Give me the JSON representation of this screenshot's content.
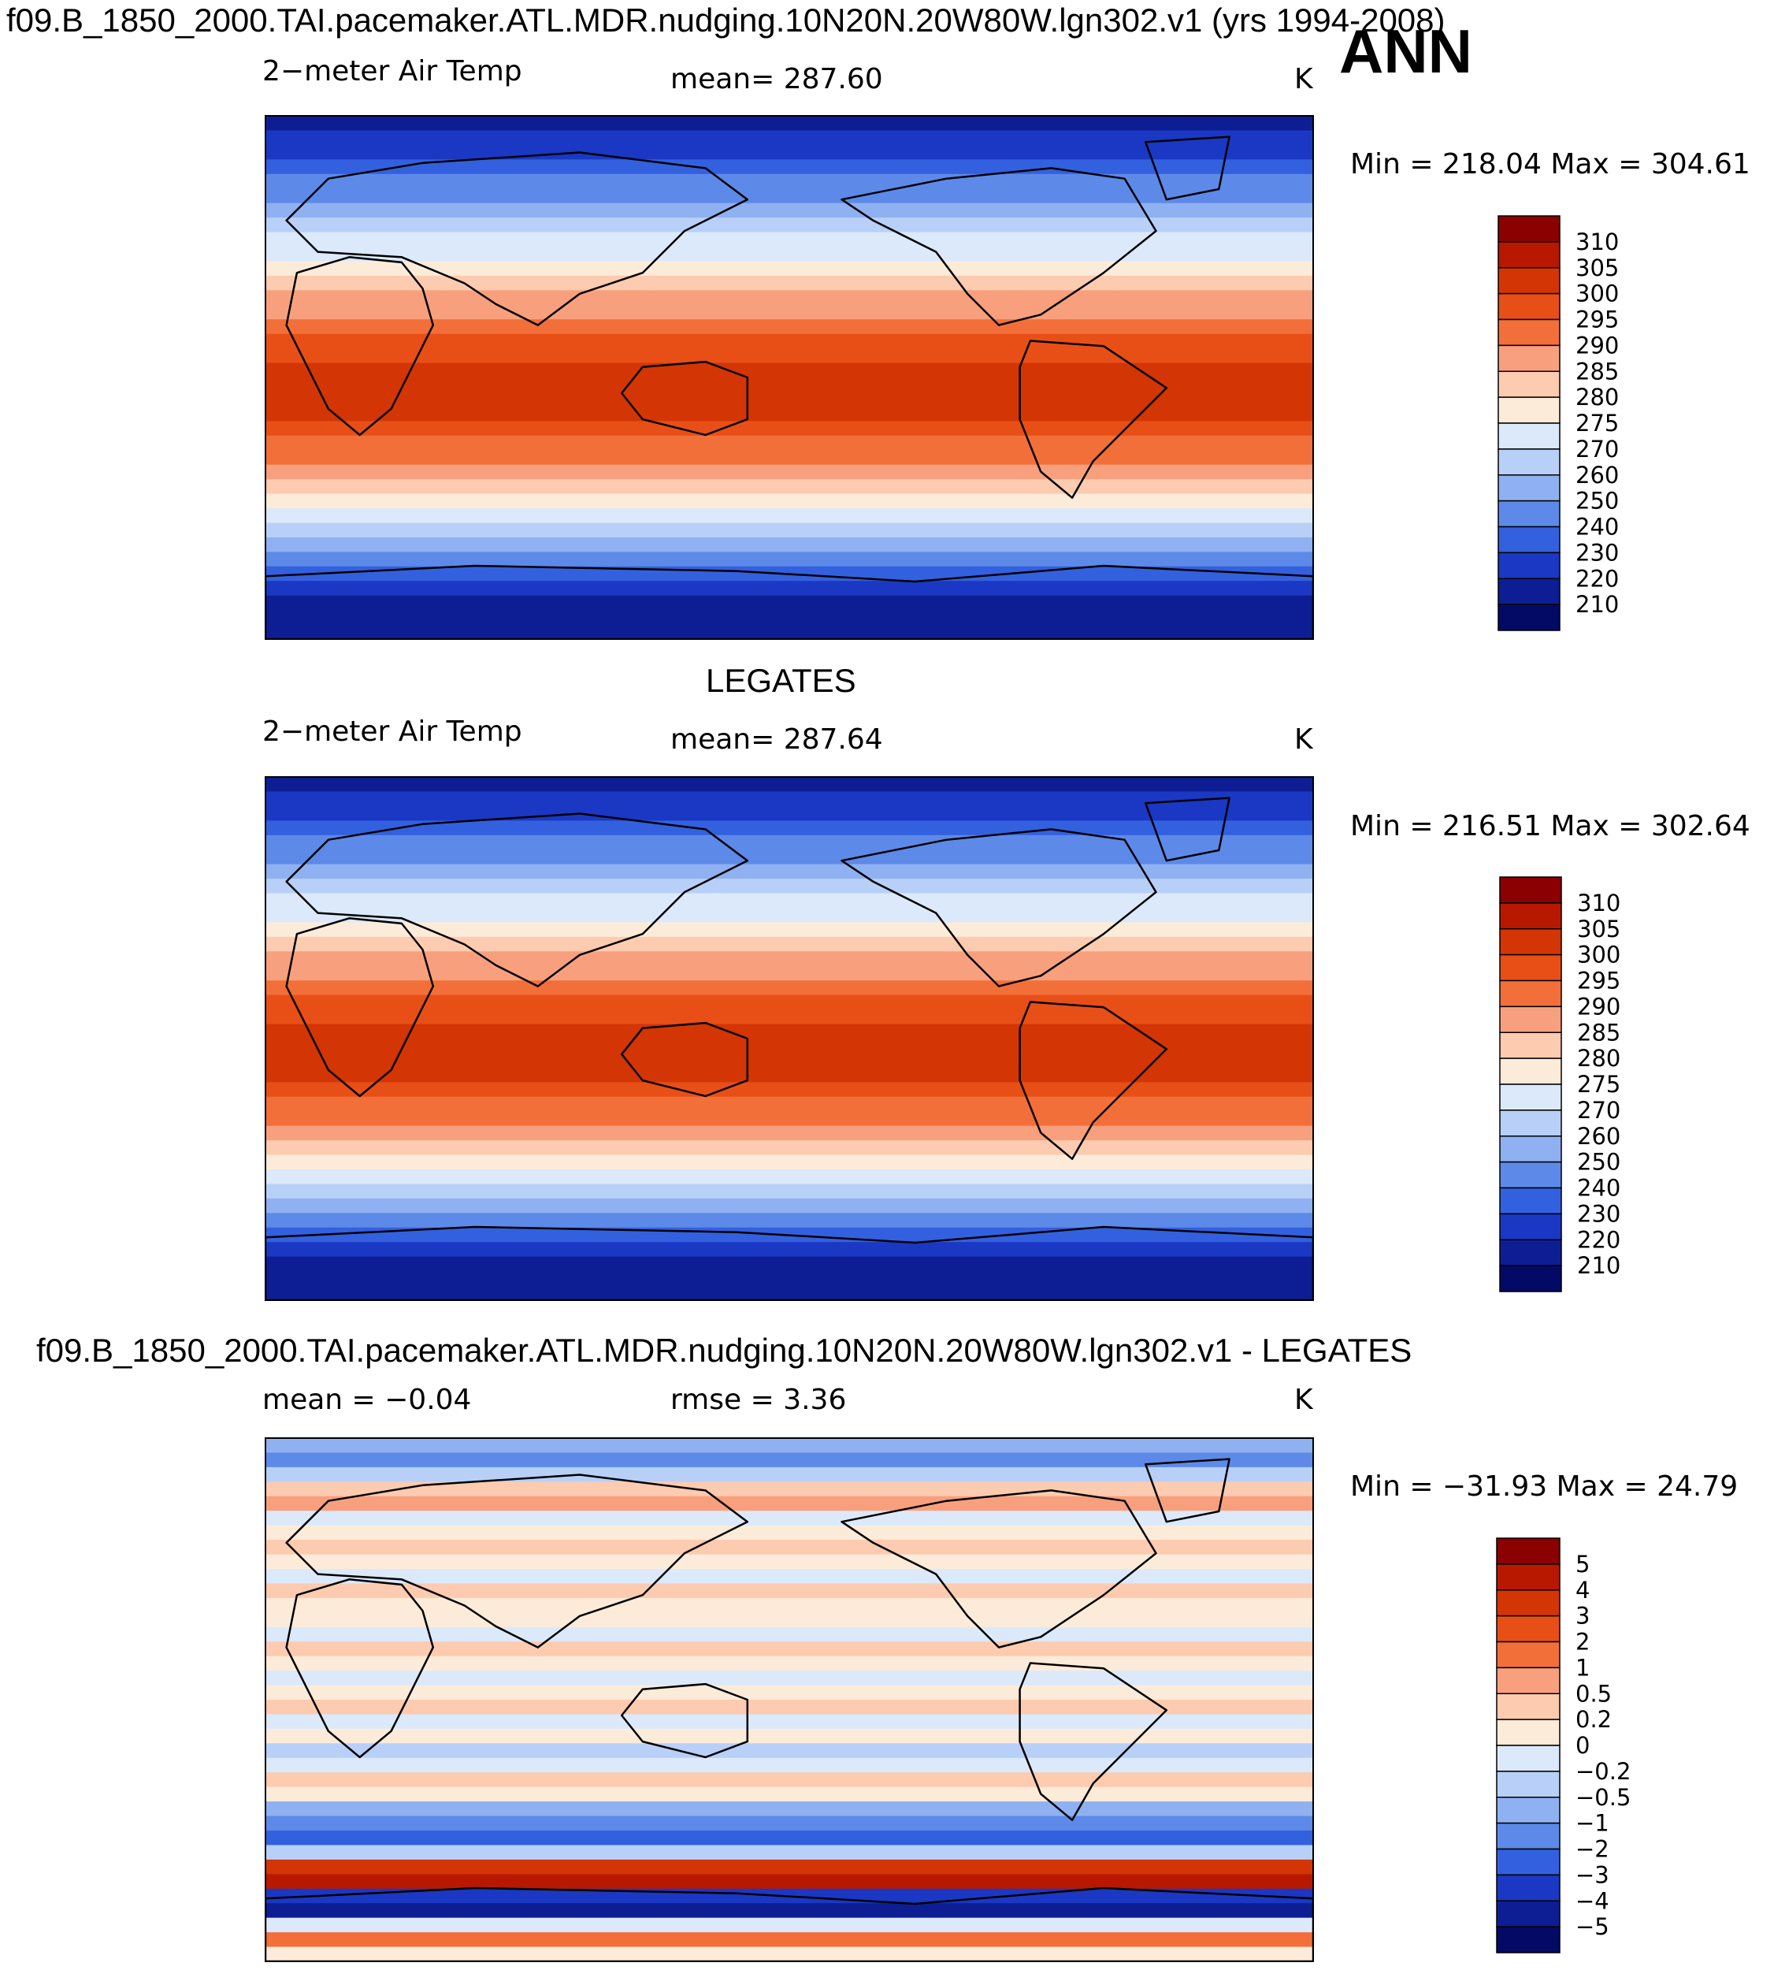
{
  "figure": {
    "title": "f09.B_1850_2000.TAI.pacemaker.ATL.MDR.nudging.10N20N.20W80W.lgn302.v1 (yrs 1994-2008)",
    "season": "ANN"
  },
  "panels": [
    {
      "id": "model",
      "heading": "",
      "variable": "2−meter Air Temp",
      "stat_text": "mean=  287.60",
      "units": "K",
      "minmax_text": "Min  =  218.04  Max  =  304.61"
    },
    {
      "id": "obs",
      "heading": "LEGATES",
      "variable": "2−meter Air Temp",
      "stat_text": "mean=  287.64",
      "units": "K",
      "minmax_text": "Min  =  216.51  Max  =  302.64"
    },
    {
      "id": "diff",
      "heading": "f09.B_1850_2000.TAI.pacemaker.ATL.MDR.nudging.10N20N.20W80W.lgn302.v1 - LEGATES",
      "variable": "mean  =    −0.04",
      "stat_text": "rmse  =       3.36",
      "units": "K",
      "minmax_text": "Min  =  −31.93  Max  =    24.79"
    }
  ],
  "chart_data": [
    {
      "type": "heatmap",
      "title": "2−meter Air Temp",
      "units": "K",
      "mean": 287.6,
      "min": 218.04,
      "max": 304.61,
      "colorbar_levels": [
        "310",
        "305",
        "300",
        "295",
        "290",
        "285",
        "280",
        "275",
        "270",
        "260",
        "250",
        "240",
        "230",
        "220",
        "210"
      ],
      "colorbar_colors": [
        "#8b0000",
        "#b81800",
        "#d33505",
        "#e84f16",
        "#f36f3a",
        "#f8a07e",
        "#fccbb0",
        "#fdebd9",
        "#dbe9fb",
        "#b8d0f7",
        "#8fb1f1",
        "#5d8ae8",
        "#3360de",
        "#1a38c4",
        "#0d1e94",
        "#020a66"
      ]
    },
    {
      "type": "heatmap",
      "title": "2−meter Air Temp",
      "units": "K",
      "mean": 287.64,
      "min": 216.51,
      "max": 302.64,
      "colorbar_levels": [
        "310",
        "305",
        "300",
        "295",
        "290",
        "285",
        "280",
        "275",
        "270",
        "260",
        "250",
        "240",
        "230",
        "220",
        "210"
      ],
      "colorbar_colors": [
        "#8b0000",
        "#b81800",
        "#d33505",
        "#e84f16",
        "#f36f3a",
        "#f8a07e",
        "#fccbb0",
        "#fdebd9",
        "#dbe9fb",
        "#b8d0f7",
        "#8fb1f1",
        "#5d8ae8",
        "#3360de",
        "#1a38c4",
        "#0d1e94",
        "#020a66"
      ]
    },
    {
      "type": "heatmap",
      "title": "f09.B_1850_2000.TAI.pacemaker.ATL.MDR.nudging.10N20N.20W80W.lgn302.v1 - LEGATES",
      "units": "K",
      "mean": -0.04,
      "rmse": 3.36,
      "min": -31.93,
      "max": 24.79,
      "colorbar_levels": [
        "5",
        "4",
        "3",
        "2",
        "1",
        "0.5",
        "0.2",
        "0",
        "−0.2",
        "−0.5",
        "−1",
        "−2",
        "−3",
        "−4",
        "−5"
      ],
      "colorbar_colors": [
        "#8b0000",
        "#b81800",
        "#d33505",
        "#e84f16",
        "#f36f3a",
        "#f8a07e",
        "#fccbb0",
        "#fdebd9",
        "#dbe9fb",
        "#b8d0f7",
        "#8fb1f1",
        "#5d8ae8",
        "#3360de",
        "#1a38c4",
        "#0d1e94",
        "#020a66"
      ]
    }
  ]
}
